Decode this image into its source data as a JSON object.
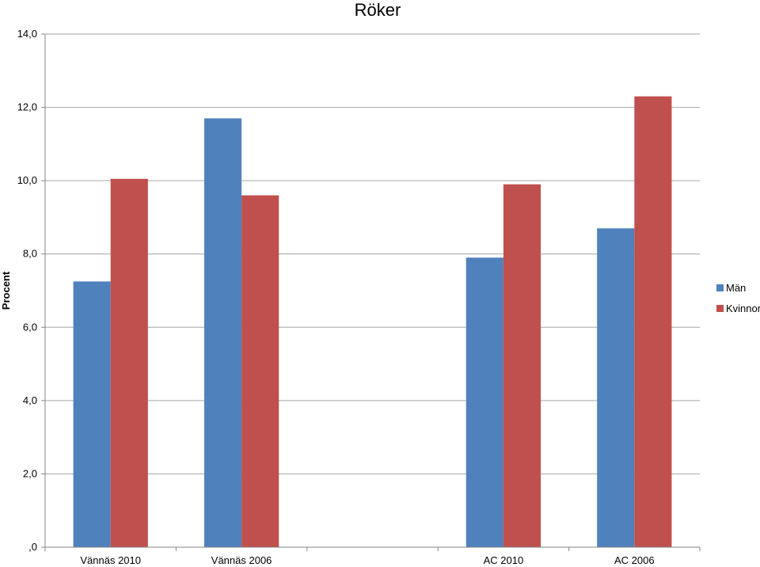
{
  "chart_data": {
    "type": "bar",
    "title": "Röker",
    "xlabel": "",
    "ylabel": "Procent",
    "categories": [
      "Vännäs 2010",
      "Vännäs 2006",
      "",
      "AC 2010",
      "AC 2006"
    ],
    "series": [
      {
        "name": "Män",
        "color": "#4F81BD",
        "values": [
          7.25,
          11.7,
          null,
          7.9,
          8.7
        ]
      },
      {
        "name": "Kvinnor",
        "color": "#C0504D",
        "values": [
          10.05,
          9.6,
          null,
          9.9,
          12.3
        ]
      }
    ],
    "ylim": [
      0,
      14
    ],
    "yticks": [
      0,
      2,
      4,
      6,
      8,
      10,
      12,
      14
    ],
    "ytick_labels": [
      ",0",
      "2,0",
      "4,0",
      "6,0",
      "8,0",
      "10,0",
      "12,0",
      "14,0"
    ],
    "grid": true,
    "legend": "right"
  }
}
